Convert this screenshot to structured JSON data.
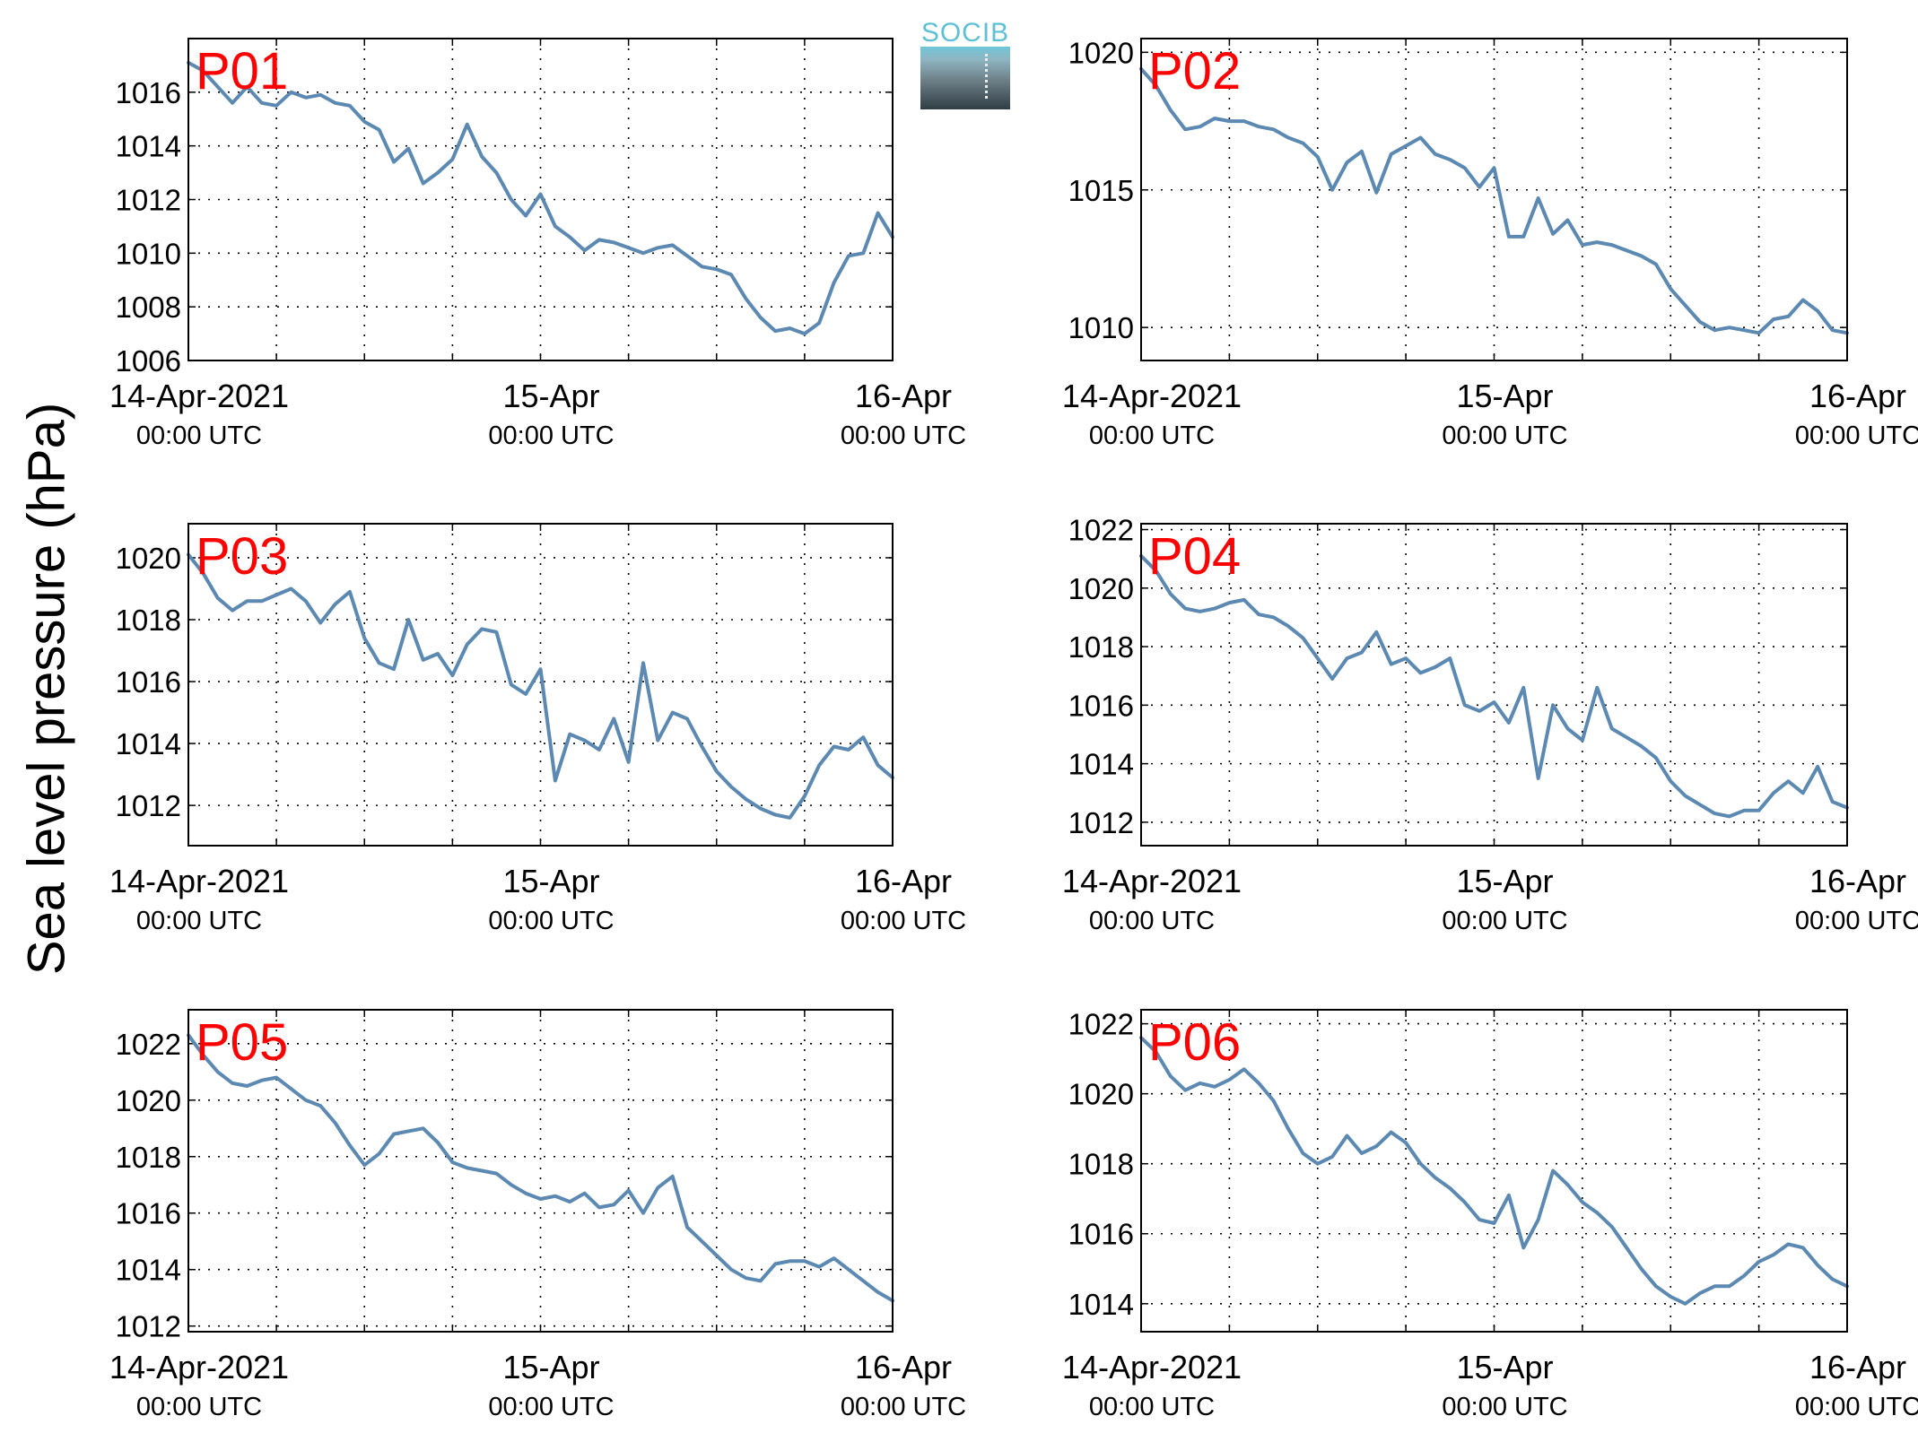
{
  "ylabel": "Sea level pressure (hPa)",
  "logo": {
    "text": "SOCIB"
  },
  "series_color": "#5b89b1",
  "station_label_color": "#ff0000",
  "x_ticks": [
    {
      "line1": "14-Apr-2021",
      "line2": "00:00 UTC"
    },
    {
      "line1": "15-Apr",
      "line2": "00:00 UTC"
    },
    {
      "line1": "16-Apr",
      "line2": "00:00 UTC"
    }
  ],
  "chart_data": [
    {
      "type": "line",
      "station": "P01",
      "xlim_hours": [
        0,
        48
      ],
      "ylim": [
        1006,
        1018
      ],
      "yticks": [
        1006,
        1008,
        1010,
        1012,
        1014,
        1016
      ],
      "x_hours": [
        0,
        1,
        2,
        3,
        4,
        5,
        6,
        7,
        8,
        9,
        10,
        11,
        12,
        13,
        14,
        15,
        16,
        17,
        18,
        19,
        20,
        21,
        22,
        23,
        24,
        25,
        26,
        27,
        28,
        29,
        30,
        31,
        32,
        33,
        34,
        35,
        36,
        37,
        38,
        39,
        40,
        41,
        42,
        43,
        44,
        45,
        46,
        47,
        48
      ],
      "values": [
        1017.1,
        1016.8,
        1016.2,
        1015.6,
        1016.2,
        1015.6,
        1015.5,
        1016.0,
        1015.8,
        1015.9,
        1015.6,
        1015.5,
        1014.9,
        1014.6,
        1013.4,
        1013.9,
        1012.6,
        1013.0,
        1013.5,
        1014.8,
        1013.6,
        1013.0,
        1012.0,
        1011.4,
        1012.2,
        1011.0,
        1010.6,
        1010.1,
        1010.5,
        1010.4,
        1010.2,
        1010.0,
        1010.2,
        1010.3,
        1009.9,
        1009.5,
        1009.4,
        1009.2,
        1008.3,
        1007.6,
        1007.1,
        1007.2,
        1007.0,
        1007.4,
        1008.9,
        1009.9,
        1010.0,
        1011.5,
        1010.6
      ]
    },
    {
      "type": "line",
      "station": "P02",
      "xlim_hours": [
        0,
        48
      ],
      "ylim": [
        1008.8,
        1020.5
      ],
      "yticks": [
        1010,
        1015,
        1020
      ],
      "x_hours": [
        0,
        1,
        2,
        3,
        4,
        5,
        6,
        7,
        8,
        9,
        10,
        11,
        12,
        13,
        14,
        15,
        16,
        17,
        18,
        19,
        20,
        21,
        22,
        23,
        24,
        25,
        26,
        27,
        28,
        29,
        30,
        31,
        32,
        33,
        34,
        35,
        36,
        37,
        38,
        39,
        40,
        41,
        42,
        43,
        44,
        45,
        46,
        47,
        48
      ],
      "values": [
        1019.4,
        1018.8,
        1017.9,
        1017.2,
        1017.3,
        1017.6,
        1017.5,
        1017.5,
        1017.3,
        1017.2,
        1016.9,
        1016.7,
        1016.2,
        1015.0,
        1016.0,
        1016.4,
        1014.9,
        1016.3,
        1016.6,
        1016.9,
        1016.3,
        1016.1,
        1015.8,
        1015.1,
        1015.8,
        1013.3,
        1013.3,
        1014.7,
        1013.4,
        1013.9,
        1013.0,
        1013.1,
        1013.0,
        1012.8,
        1012.6,
        1012.3,
        1011.4,
        1010.8,
        1010.2,
        1009.9,
        1010.0,
        1009.9,
        1009.8,
        1010.3,
        1010.4,
        1011.0,
        1010.6,
        1009.9,
        1009.8
      ]
    },
    {
      "type": "line",
      "station": "P03",
      "xlim_hours": [
        0,
        48
      ],
      "ylim": [
        1010.7,
        1021.1
      ],
      "yticks": [
        1012,
        1014,
        1016,
        1018,
        1020
      ],
      "x_hours": [
        0,
        1,
        2,
        3,
        4,
        5,
        6,
        7,
        8,
        9,
        10,
        11,
        12,
        13,
        14,
        15,
        16,
        17,
        18,
        19,
        20,
        21,
        22,
        23,
        24,
        25,
        26,
        27,
        28,
        29,
        30,
        31,
        32,
        33,
        34,
        35,
        36,
        37,
        38,
        39,
        40,
        41,
        42,
        43,
        44,
        45,
        46,
        47,
        48
      ],
      "values": [
        1020.1,
        1019.5,
        1018.7,
        1018.3,
        1018.6,
        1018.6,
        1018.8,
        1019.0,
        1018.6,
        1017.9,
        1018.5,
        1018.9,
        1017.4,
        1016.6,
        1016.4,
        1018.0,
        1016.7,
        1016.9,
        1016.2,
        1017.2,
        1017.7,
        1017.6,
        1015.9,
        1015.6,
        1016.4,
        1012.8,
        1014.3,
        1014.1,
        1013.8,
        1014.8,
        1013.4,
        1016.6,
        1014.1,
        1015.0,
        1014.8,
        1013.9,
        1013.1,
        1012.6,
        1012.2,
        1011.9,
        1011.7,
        1011.6,
        1012.3,
        1013.3,
        1013.9,
        1013.8,
        1014.2,
        1013.3,
        1012.9
      ]
    },
    {
      "type": "line",
      "station": "P04",
      "xlim_hours": [
        0,
        48
      ],
      "ylim": [
        1011.2,
        1022.2
      ],
      "yticks": [
        1012,
        1014,
        1016,
        1018,
        1020,
        1022
      ],
      "x_hours": [
        0,
        1,
        2,
        3,
        4,
        5,
        6,
        7,
        8,
        9,
        10,
        11,
        12,
        13,
        14,
        15,
        16,
        17,
        18,
        19,
        20,
        21,
        22,
        23,
        24,
        25,
        26,
        27,
        28,
        29,
        30,
        31,
        32,
        33,
        34,
        35,
        36,
        37,
        38,
        39,
        40,
        41,
        42,
        43,
        44,
        45,
        46,
        47,
        48
      ],
      "values": [
        1021.1,
        1020.6,
        1019.8,
        1019.3,
        1019.2,
        1019.3,
        1019.5,
        1019.6,
        1019.1,
        1019.0,
        1018.7,
        1018.3,
        1017.6,
        1016.9,
        1017.6,
        1017.8,
        1018.5,
        1017.4,
        1017.6,
        1017.1,
        1017.3,
        1017.6,
        1016.0,
        1015.8,
        1016.1,
        1015.4,
        1016.6,
        1013.5,
        1016.0,
        1015.2,
        1014.8,
        1016.6,
        1015.2,
        1014.9,
        1014.6,
        1014.2,
        1013.4,
        1012.9,
        1012.6,
        1012.3,
        1012.2,
        1012.4,
        1012.4,
        1013.0,
        1013.4,
        1013.0,
        1013.9,
        1012.7,
        1012.5
      ]
    },
    {
      "type": "line",
      "station": "P05",
      "xlim_hours": [
        0,
        48
      ],
      "ylim": [
        1011.8,
        1023.2
      ],
      "yticks": [
        1012,
        1014,
        1016,
        1018,
        1020,
        1022
      ],
      "x_hours": [
        0,
        1,
        2,
        3,
        4,
        5,
        6,
        7,
        8,
        9,
        10,
        11,
        12,
        13,
        14,
        15,
        16,
        17,
        18,
        19,
        20,
        21,
        22,
        23,
        24,
        25,
        26,
        27,
        28,
        29,
        30,
        31,
        32,
        33,
        34,
        35,
        36,
        37,
        38,
        39,
        40,
        41,
        42,
        43,
        44,
        45,
        46,
        47,
        48
      ],
      "values": [
        1022.3,
        1021.6,
        1021.0,
        1020.6,
        1020.5,
        1020.7,
        1020.8,
        1020.4,
        1020.0,
        1019.8,
        1019.2,
        1018.4,
        1017.7,
        1018.1,
        1018.8,
        1018.9,
        1019.0,
        1018.5,
        1017.8,
        1017.6,
        1017.5,
        1017.4,
        1017.0,
        1016.7,
        1016.5,
        1016.6,
        1016.4,
        1016.7,
        1016.2,
        1016.3,
        1016.8,
        1016.0,
        1016.9,
        1017.3,
        1015.5,
        1015.0,
        1014.5,
        1014.0,
        1013.7,
        1013.6,
        1014.2,
        1014.3,
        1014.3,
        1014.1,
        1014.4,
        1014.0,
        1013.6,
        1013.2,
        1012.9
      ]
    },
    {
      "type": "line",
      "station": "P06",
      "xlim_hours": [
        0,
        48
      ],
      "ylim": [
        1013.2,
        1022.4
      ],
      "yticks": [
        1014,
        1016,
        1018,
        1020,
        1022
      ],
      "x_hours": [
        0,
        1,
        2,
        3,
        4,
        5,
        6,
        7,
        8,
        9,
        10,
        11,
        12,
        13,
        14,
        15,
        16,
        17,
        18,
        19,
        20,
        21,
        22,
        23,
        24,
        25,
        26,
        27,
        28,
        29,
        30,
        31,
        32,
        33,
        34,
        35,
        36,
        37,
        38,
        39,
        40,
        41,
        42,
        43,
        44,
        45,
        46,
        47,
        48
      ],
      "values": [
        1021.6,
        1021.2,
        1020.5,
        1020.1,
        1020.3,
        1020.2,
        1020.4,
        1020.7,
        1020.3,
        1019.8,
        1019.0,
        1018.3,
        1018.0,
        1018.2,
        1018.8,
        1018.3,
        1018.5,
        1018.9,
        1018.6,
        1018.0,
        1017.6,
        1017.3,
        1016.9,
        1016.4,
        1016.3,
        1017.1,
        1015.6,
        1016.4,
        1017.8,
        1017.4,
        1016.9,
        1016.6,
        1016.2,
        1015.6,
        1015.0,
        1014.5,
        1014.2,
        1014.0,
        1014.3,
        1014.5,
        1014.5,
        1014.8,
        1015.2,
        1015.4,
        1015.7,
        1015.6,
        1015.1,
        1014.7,
        1014.5
      ]
    }
  ]
}
